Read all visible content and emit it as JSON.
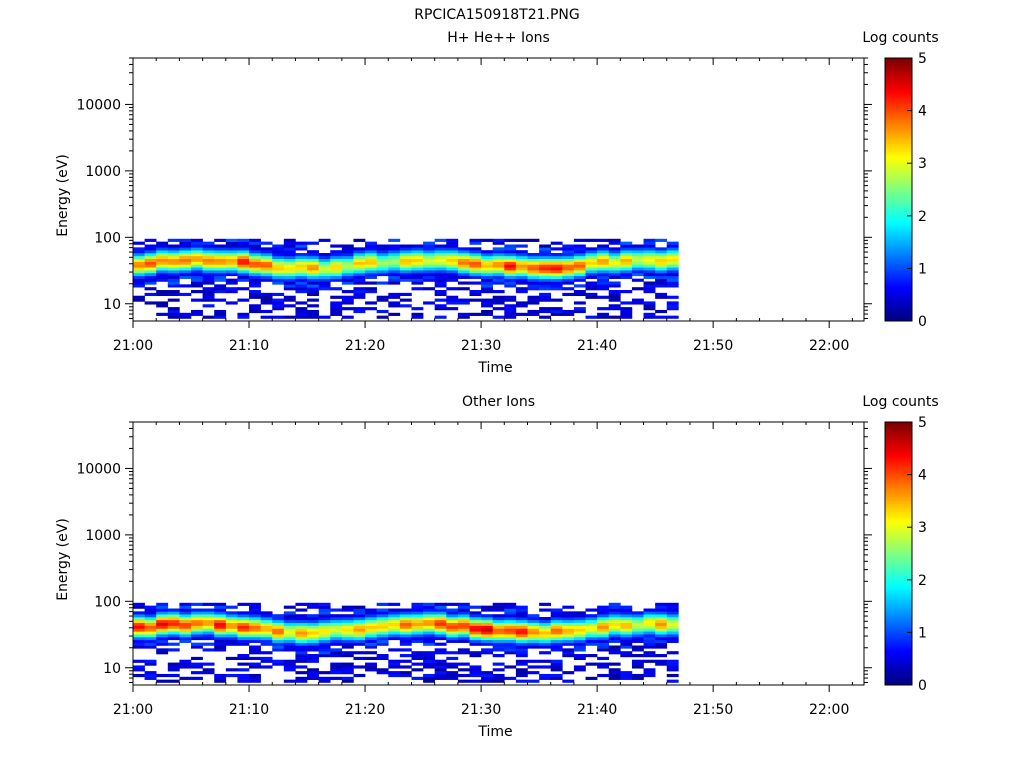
{
  "figure_title": "RPCICA150918T21.PNG",
  "chart_data": [
    {
      "type": "heatmap",
      "title": "H+ He++ Ions",
      "xlabel": "Time",
      "ylabel": "Energy (eV)",
      "y_scale": "log",
      "ylim": [
        5.5,
        50000
      ],
      "x_range_minutes": [
        0,
        63
      ],
      "x_ticks": [
        "21:00",
        "21:10",
        "21:20",
        "21:30",
        "21:40",
        "21:50",
        "22:00"
      ],
      "y_ticks": [
        "10",
        "100",
        "1000",
        "10000"
      ],
      "y_tick_values": [
        10,
        100,
        1000,
        10000
      ],
      "colorbar": {
        "label": "Log counts",
        "range": [
          0,
          5
        ],
        "ticks": [
          "0",
          "1",
          "2",
          "3",
          "4",
          "5"
        ],
        "colormap": "jet"
      },
      "data_time_range": [
        "21:00",
        "21:47"
      ],
      "data_energy_range_eV": [
        6,
        95
      ],
      "peak_energy_eV": 40,
      "peak_log_counts": 4.6
    },
    {
      "type": "heatmap",
      "title": "Other Ions",
      "xlabel": "Time",
      "ylabel": "Energy (eV)",
      "y_scale": "log",
      "ylim": [
        5.5,
        50000
      ],
      "x_range_minutes": [
        0,
        63
      ],
      "x_ticks": [
        "21:00",
        "21:10",
        "21:20",
        "21:30",
        "21:40",
        "21:50",
        "22:00"
      ],
      "y_ticks": [
        "10",
        "100",
        "1000",
        "10000"
      ],
      "y_tick_values": [
        10,
        100,
        1000,
        10000
      ],
      "colorbar": {
        "label": "Log counts",
        "range": [
          0,
          5
        ],
        "ticks": [
          "0",
          "1",
          "2",
          "3",
          "4",
          "5"
        ],
        "colormap": "jet"
      },
      "data_time_range": [
        "21:00",
        "21:47"
      ],
      "data_energy_range_eV": [
        6,
        95
      ],
      "peak_energy_eV": 40,
      "peak_log_counts": 4.8
    }
  ]
}
